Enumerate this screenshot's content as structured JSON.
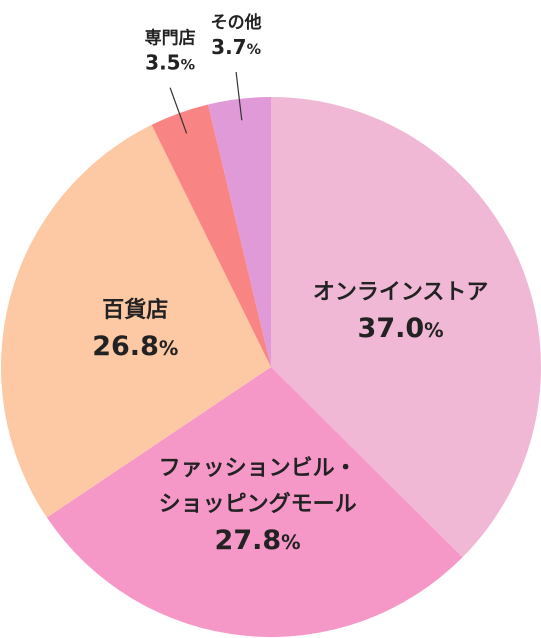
{
  "chart_data": {
    "type": "pie",
    "title": "",
    "slices": [
      {
        "name": "オンラインストア",
        "value": 37.0,
        "label": "37.0",
        "color": "#f0b8d4"
      },
      {
        "name": "ファッションビル・ショッピングモール",
        "name_lines": [
          "ファッションビル・",
          "ショッピングモール"
        ],
        "value": 27.8,
        "label": "27.8",
        "color": "#f598c8"
      },
      {
        "name": "百貨店",
        "value": 26.8,
        "label": "26.8",
        "color": "#fdc8a4"
      },
      {
        "name": "専門店",
        "value": 3.5,
        "label": "3.5",
        "color": "#f98484"
      },
      {
        "name": "その他",
        "value": 3.7,
        "label": "3.7",
        "color": "#e09ad8"
      }
    ],
    "unit": "%",
    "start": "12 o'clock",
    "direction": "clockwise"
  }
}
